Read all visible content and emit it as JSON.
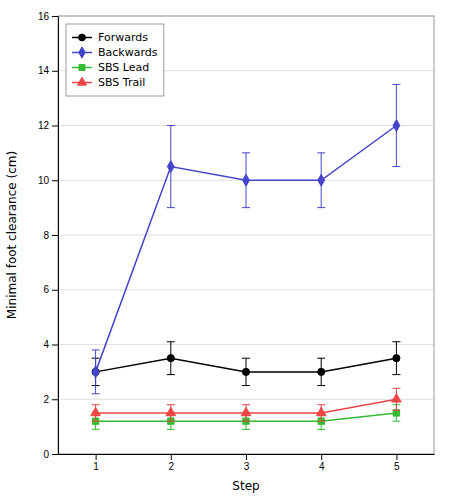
{
  "chart_data": {
    "type": "line",
    "x_label": "Step",
    "y_label": "Minimal foot clearance (cm)",
    "x": [
      1,
      2,
      3,
      4,
      5
    ],
    "xlim": [
      0.5,
      5.5
    ],
    "xticks": [
      1,
      2,
      3,
      4,
      5
    ],
    "ylim": [
      0,
      16
    ],
    "yticks": [
      0,
      2,
      4,
      6,
      8,
      10,
      12,
      14,
      16
    ],
    "grid": true,
    "legend": "upper-left",
    "series": [
      {
        "name": "Forwards",
        "color": "#000000",
        "marker": "circle",
        "values": [
          3.0,
          3.5,
          3.0,
          3.0,
          3.5
        ],
        "errors": [
          0.5,
          0.6,
          0.5,
          0.5,
          0.6
        ]
      },
      {
        "name": "Backwards",
        "color": "#4444cc",
        "marker": "diamond",
        "values": [
          3.0,
          10.5,
          10.0,
          10.0,
          12.0
        ],
        "errors": [
          0.8,
          1.5,
          1.0,
          1.0,
          1.5
        ]
      },
      {
        "name": "SBS Lead",
        "color": "#33bb33",
        "marker": "square",
        "values": [
          1.2,
          1.2,
          1.2,
          1.2,
          1.5
        ],
        "errors": [
          0.3,
          0.3,
          0.3,
          0.3,
          0.3
        ]
      },
      {
        "name": "SBS Trail",
        "color": "#ee4444",
        "marker": "triangle",
        "values": [
          1.5,
          1.5,
          1.5,
          1.5,
          2.0
        ],
        "errors": [
          0.3,
          0.3,
          0.3,
          0.3,
          0.4
        ]
      }
    ]
  }
}
